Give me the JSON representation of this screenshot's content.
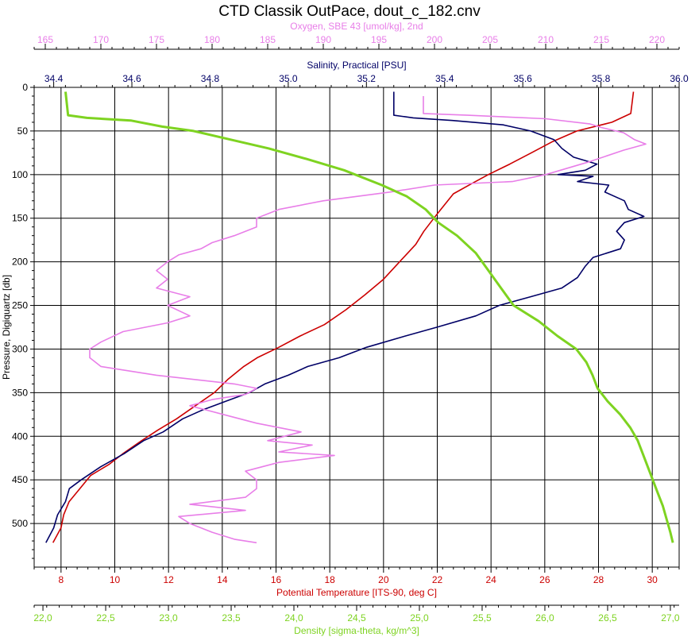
{
  "chart_data": {
    "type": "line",
    "title": "CTD Classik OutPace, dout_c_182.cnv",
    "y_axis": {
      "label": "Pressure, Digiquartz [db]",
      "range": [
        0,
        550
      ],
      "ticks": [
        0,
        50,
        100,
        150,
        200,
        250,
        300,
        350,
        400,
        450,
        500
      ],
      "inverted": true
    },
    "x_axes": [
      {
        "id": "oxygen",
        "label": "Oxygen, SBE 43 [umol/kg], 2nd",
        "position": "top",
        "range": [
          164,
          222
        ],
        "ticks": [
          165,
          170,
          175,
          180,
          185,
          190,
          195,
          200,
          205,
          210,
          215,
          220
        ],
        "tick_labels": [
          "165",
          "170",
          "175",
          "180",
          "185",
          "190",
          "195",
          "200",
          "205",
          "210",
          "215",
          "220"
        ],
        "color": "#e87ee8"
      },
      {
        "id": "salinity",
        "label": "Salinity, Practical [PSU]",
        "position": "top",
        "range": [
          34.35,
          36.0
        ],
        "ticks": [
          34.4,
          34.6,
          34.8,
          35.0,
          35.2,
          35.4,
          35.6,
          35.8,
          36.0
        ],
        "tick_labels": [
          "34.4",
          "34.6",
          "34.8",
          "35.0",
          "35.2",
          "35.4",
          "35.6",
          "35.8",
          "36.0"
        ],
        "color": "#000066"
      },
      {
        "id": "temperature",
        "label": "Potential Temperature [ITS-90, deg C]",
        "position": "bottom",
        "range": [
          7,
          31
        ],
        "ticks": [
          8,
          10,
          12,
          14,
          16,
          18,
          20,
          22,
          24,
          26,
          28,
          30
        ],
        "tick_labels": [
          "8",
          "10",
          "12",
          "14",
          "16",
          "18",
          "20",
          "22",
          "24",
          "26",
          "28",
          "30"
        ],
        "color": "#cc0000"
      },
      {
        "id": "density",
        "label": "Density [sigma-theta, kg/m^3]",
        "position": "bottom",
        "range": [
          21.93,
          27.07
        ],
        "ticks": [
          22.0,
          22.5,
          23.0,
          23.5,
          24.0,
          24.5,
          25.0,
          25.5,
          26.0,
          26.5,
          27.0
        ],
        "tick_labels": [
          "22,0",
          "22,5",
          "23,0",
          "23,5",
          "24,0",
          "24,5",
          "25,0",
          "25,5",
          "26,0",
          "26,5",
          "27,0"
        ],
        "color": "#7ed321"
      }
    ],
    "grid": true,
    "series": [
      {
        "axis": "temperature",
        "color": "#cc0000",
        "points": [
          [
            29.3,
            5
          ],
          [
            29.2,
            30
          ],
          [
            28.5,
            40
          ],
          [
            27.2,
            50
          ],
          [
            26.3,
            62
          ],
          [
            25.5,
            75
          ],
          [
            24.7,
            88
          ],
          [
            23.9,
            100
          ],
          [
            23.3,
            110
          ],
          [
            22.6,
            122
          ],
          [
            22.0,
            145
          ],
          [
            21.5,
            165
          ],
          [
            21.2,
            180
          ],
          [
            20.6,
            200
          ],
          [
            20.0,
            220
          ],
          [
            19.3,
            238
          ],
          [
            18.6,
            255
          ],
          [
            17.8,
            272
          ],
          [
            16.9,
            285
          ],
          [
            16.1,
            298
          ],
          [
            15.3,
            310
          ],
          [
            14.8,
            320
          ],
          [
            14.2,
            335
          ],
          [
            13.7,
            350
          ],
          [
            13.0,
            365
          ],
          [
            12.3,
            380
          ],
          [
            11.6,
            393
          ],
          [
            11.0,
            405
          ],
          [
            10.3,
            420
          ],
          [
            9.8,
            432
          ],
          [
            9.1,
            445
          ],
          [
            8.7,
            460
          ],
          [
            8.3,
            475
          ],
          [
            8.1,
            490
          ],
          [
            8.0,
            505
          ],
          [
            7.7,
            522
          ]
        ]
      },
      {
        "axis": "salinity",
        "color": "#000066",
        "points": [
          [
            35.27,
            5
          ],
          [
            35.27,
            32
          ],
          [
            35.32,
            35
          ],
          [
            35.42,
            38
          ],
          [
            35.55,
            43
          ],
          [
            35.62,
            50
          ],
          [
            35.68,
            60
          ],
          [
            35.7,
            70
          ],
          [
            35.73,
            80
          ],
          [
            35.79,
            88
          ],
          [
            35.76,
            95
          ],
          [
            35.69,
            100
          ],
          [
            35.78,
            102
          ],
          [
            35.74,
            108
          ],
          [
            35.82,
            112
          ],
          [
            35.81,
            120
          ],
          [
            35.86,
            130
          ],
          [
            35.87,
            140
          ],
          [
            35.91,
            148
          ],
          [
            35.86,
            155
          ],
          [
            35.84,
            165
          ],
          [
            35.86,
            175
          ],
          [
            35.85,
            185
          ],
          [
            35.78,
            195
          ],
          [
            35.76,
            205
          ],
          [
            35.74,
            218
          ],
          [
            35.7,
            230
          ],
          [
            35.62,
            240
          ],
          [
            35.54,
            250
          ],
          [
            35.48,
            262
          ],
          [
            35.38,
            275
          ],
          [
            35.3,
            285
          ],
          [
            35.2,
            298
          ],
          [
            35.13,
            310
          ],
          [
            35.05,
            320
          ],
          [
            35.0,
            330
          ],
          [
            34.94,
            340
          ],
          [
            34.9,
            350
          ],
          [
            34.84,
            360
          ],
          [
            34.78,
            370
          ],
          [
            34.73,
            380
          ],
          [
            34.68,
            395
          ],
          [
            34.63,
            405
          ],
          [
            34.58,
            420
          ],
          [
            34.52,
            435
          ],
          [
            34.47,
            450
          ],
          [
            34.44,
            460
          ],
          [
            34.43,
            475
          ],
          [
            34.41,
            490
          ],
          [
            34.4,
            505
          ],
          [
            34.38,
            522
          ]
        ]
      },
      {
        "axis": "oxygen",
        "color": "#e87ee8",
        "points": [
          [
            199,
            10
          ],
          [
            199,
            30
          ],
          [
            203,
            32
          ],
          [
            210,
            36
          ],
          [
            214,
            42
          ],
          [
            215,
            46
          ],
          [
            217,
            52
          ],
          [
            218,
            60
          ],
          [
            219,
            65
          ],
          [
            217,
            72
          ],
          [
            214,
            85
          ],
          [
            210,
            100
          ],
          [
            207,
            108
          ],
          [
            200,
            112
          ],
          [
            196,
            120
          ],
          [
            193,
            125
          ],
          [
            190,
            130
          ],
          [
            186,
            140
          ],
          [
            184,
            150
          ],
          [
            184,
            160
          ],
          [
            182,
            170
          ],
          [
            180,
            178
          ],
          [
            179,
            185
          ],
          [
            177,
            192
          ],
          [
            176,
            200
          ],
          [
            175,
            210
          ],
          [
            176,
            220
          ],
          [
            175,
            230
          ],
          [
            178,
            240
          ],
          [
            176,
            250
          ],
          [
            178,
            262
          ],
          [
            176,
            270
          ],
          [
            172,
            280
          ],
          [
            170,
            292
          ],
          [
            169,
            300
          ],
          [
            169,
            310
          ],
          [
            170,
            320
          ],
          [
            175,
            330
          ],
          [
            182,
            340
          ],
          [
            184,
            345
          ],
          [
            183,
            352
          ],
          [
            180,
            358
          ],
          [
            178,
            365
          ],
          [
            181,
            375
          ],
          [
            184,
            385
          ],
          [
            188,
            395
          ],
          [
            185,
            405
          ],
          [
            189,
            410
          ],
          [
            186,
            418
          ],
          [
            191,
            422
          ],
          [
            186,
            430
          ],
          [
            183,
            440
          ],
          [
            184,
            450
          ],
          [
            184,
            460
          ],
          [
            183,
            470
          ],
          [
            178,
            478
          ],
          [
            183,
            485
          ],
          [
            177,
            492
          ],
          [
            178,
            500
          ],
          [
            180,
            510
          ],
          [
            182,
            518
          ],
          [
            184,
            522
          ]
        ]
      },
      {
        "axis": "density",
        "color": "#7ed321",
        "points": [
          [
            22.18,
            5
          ],
          [
            22.2,
            32
          ],
          [
            22.35,
            35
          ],
          [
            22.7,
            38
          ],
          [
            22.95,
            45
          ],
          [
            23.2,
            50
          ],
          [
            23.5,
            60
          ],
          [
            23.8,
            70
          ],
          [
            24.1,
            82
          ],
          [
            24.4,
            95
          ],
          [
            24.7,
            112
          ],
          [
            24.9,
            125
          ],
          [
            25.05,
            140
          ],
          [
            25.15,
            155
          ],
          [
            25.3,
            170
          ],
          [
            25.45,
            190
          ],
          [
            25.55,
            210
          ],
          [
            25.65,
            230
          ],
          [
            25.75,
            250
          ],
          [
            25.95,
            268
          ],
          [
            26.1,
            285
          ],
          [
            26.25,
            300
          ],
          [
            26.33,
            315
          ],
          [
            26.38,
            330
          ],
          [
            26.42,
            345
          ],
          [
            26.5,
            360
          ],
          [
            26.6,
            375
          ],
          [
            26.68,
            390
          ],
          [
            26.74,
            405
          ],
          [
            26.78,
            420
          ],
          [
            26.82,
            435
          ],
          [
            26.86,
            450
          ],
          [
            26.9,
            465
          ],
          [
            26.94,
            480
          ],
          [
            26.97,
            495
          ],
          [
            27.0,
            510
          ],
          [
            27.02,
            522
          ]
        ]
      }
    ]
  }
}
